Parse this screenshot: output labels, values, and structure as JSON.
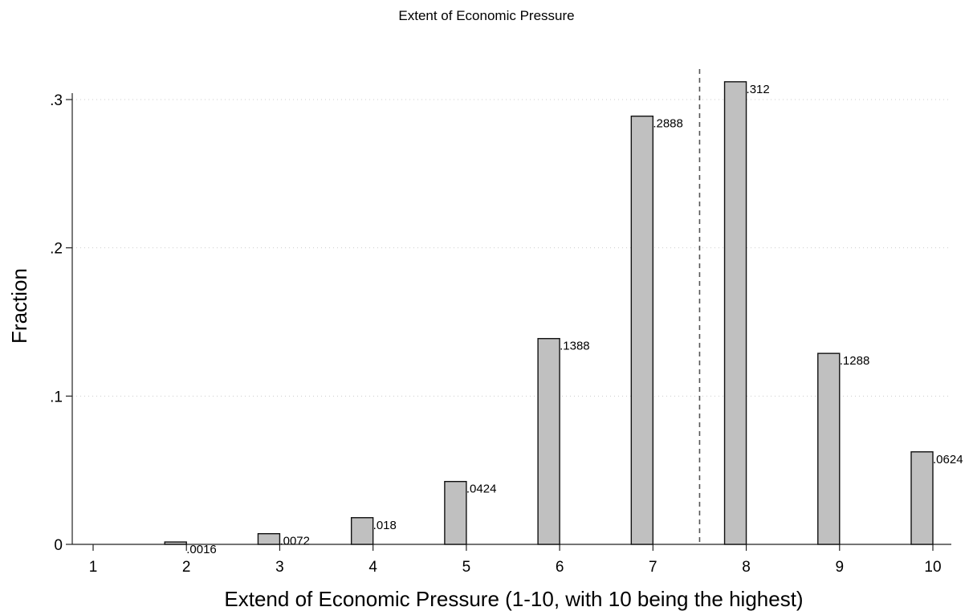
{
  "chart_data": {
    "type": "bar",
    "title": "Extent of Economic Pressure",
    "xlabel": "Extend of Economic Pressure (1-10, with 10 being the highest)",
    "ylabel": "Fraction",
    "x": [
      2,
      3,
      4,
      5,
      6,
      7,
      8,
      9,
      10
    ],
    "values": [
      0.0016,
      0.0072,
      0.018,
      0.0424,
      0.1388,
      0.2888,
      0.312,
      0.1288,
      0.0624
    ],
    "data_labels": [
      ".0016",
      ".0072",
      ".018",
      ".0424",
      ".1388",
      ".2888",
      ".312",
      ".1288",
      ".0624"
    ],
    "xlim": [
      1,
      10
    ],
    "ylim": [
      0,
      0.3
    ],
    "x_ticks": [
      1,
      2,
      3,
      4,
      5,
      6,
      7,
      8,
      9,
      10
    ],
    "x_tick_labels": [
      "1",
      "2",
      "3",
      "4",
      "5",
      "6",
      "7",
      "8",
      "9",
      "10"
    ],
    "y_ticks": [
      0,
      0.1,
      0.2,
      0.3
    ],
    "y_tick_labels": [
      "0",
      ".1",
      ".2",
      ".3"
    ],
    "reference_line_x": 7.5,
    "grid": true,
    "bar_color": "#c0c0c0",
    "bar_edge_color": "#111111"
  }
}
